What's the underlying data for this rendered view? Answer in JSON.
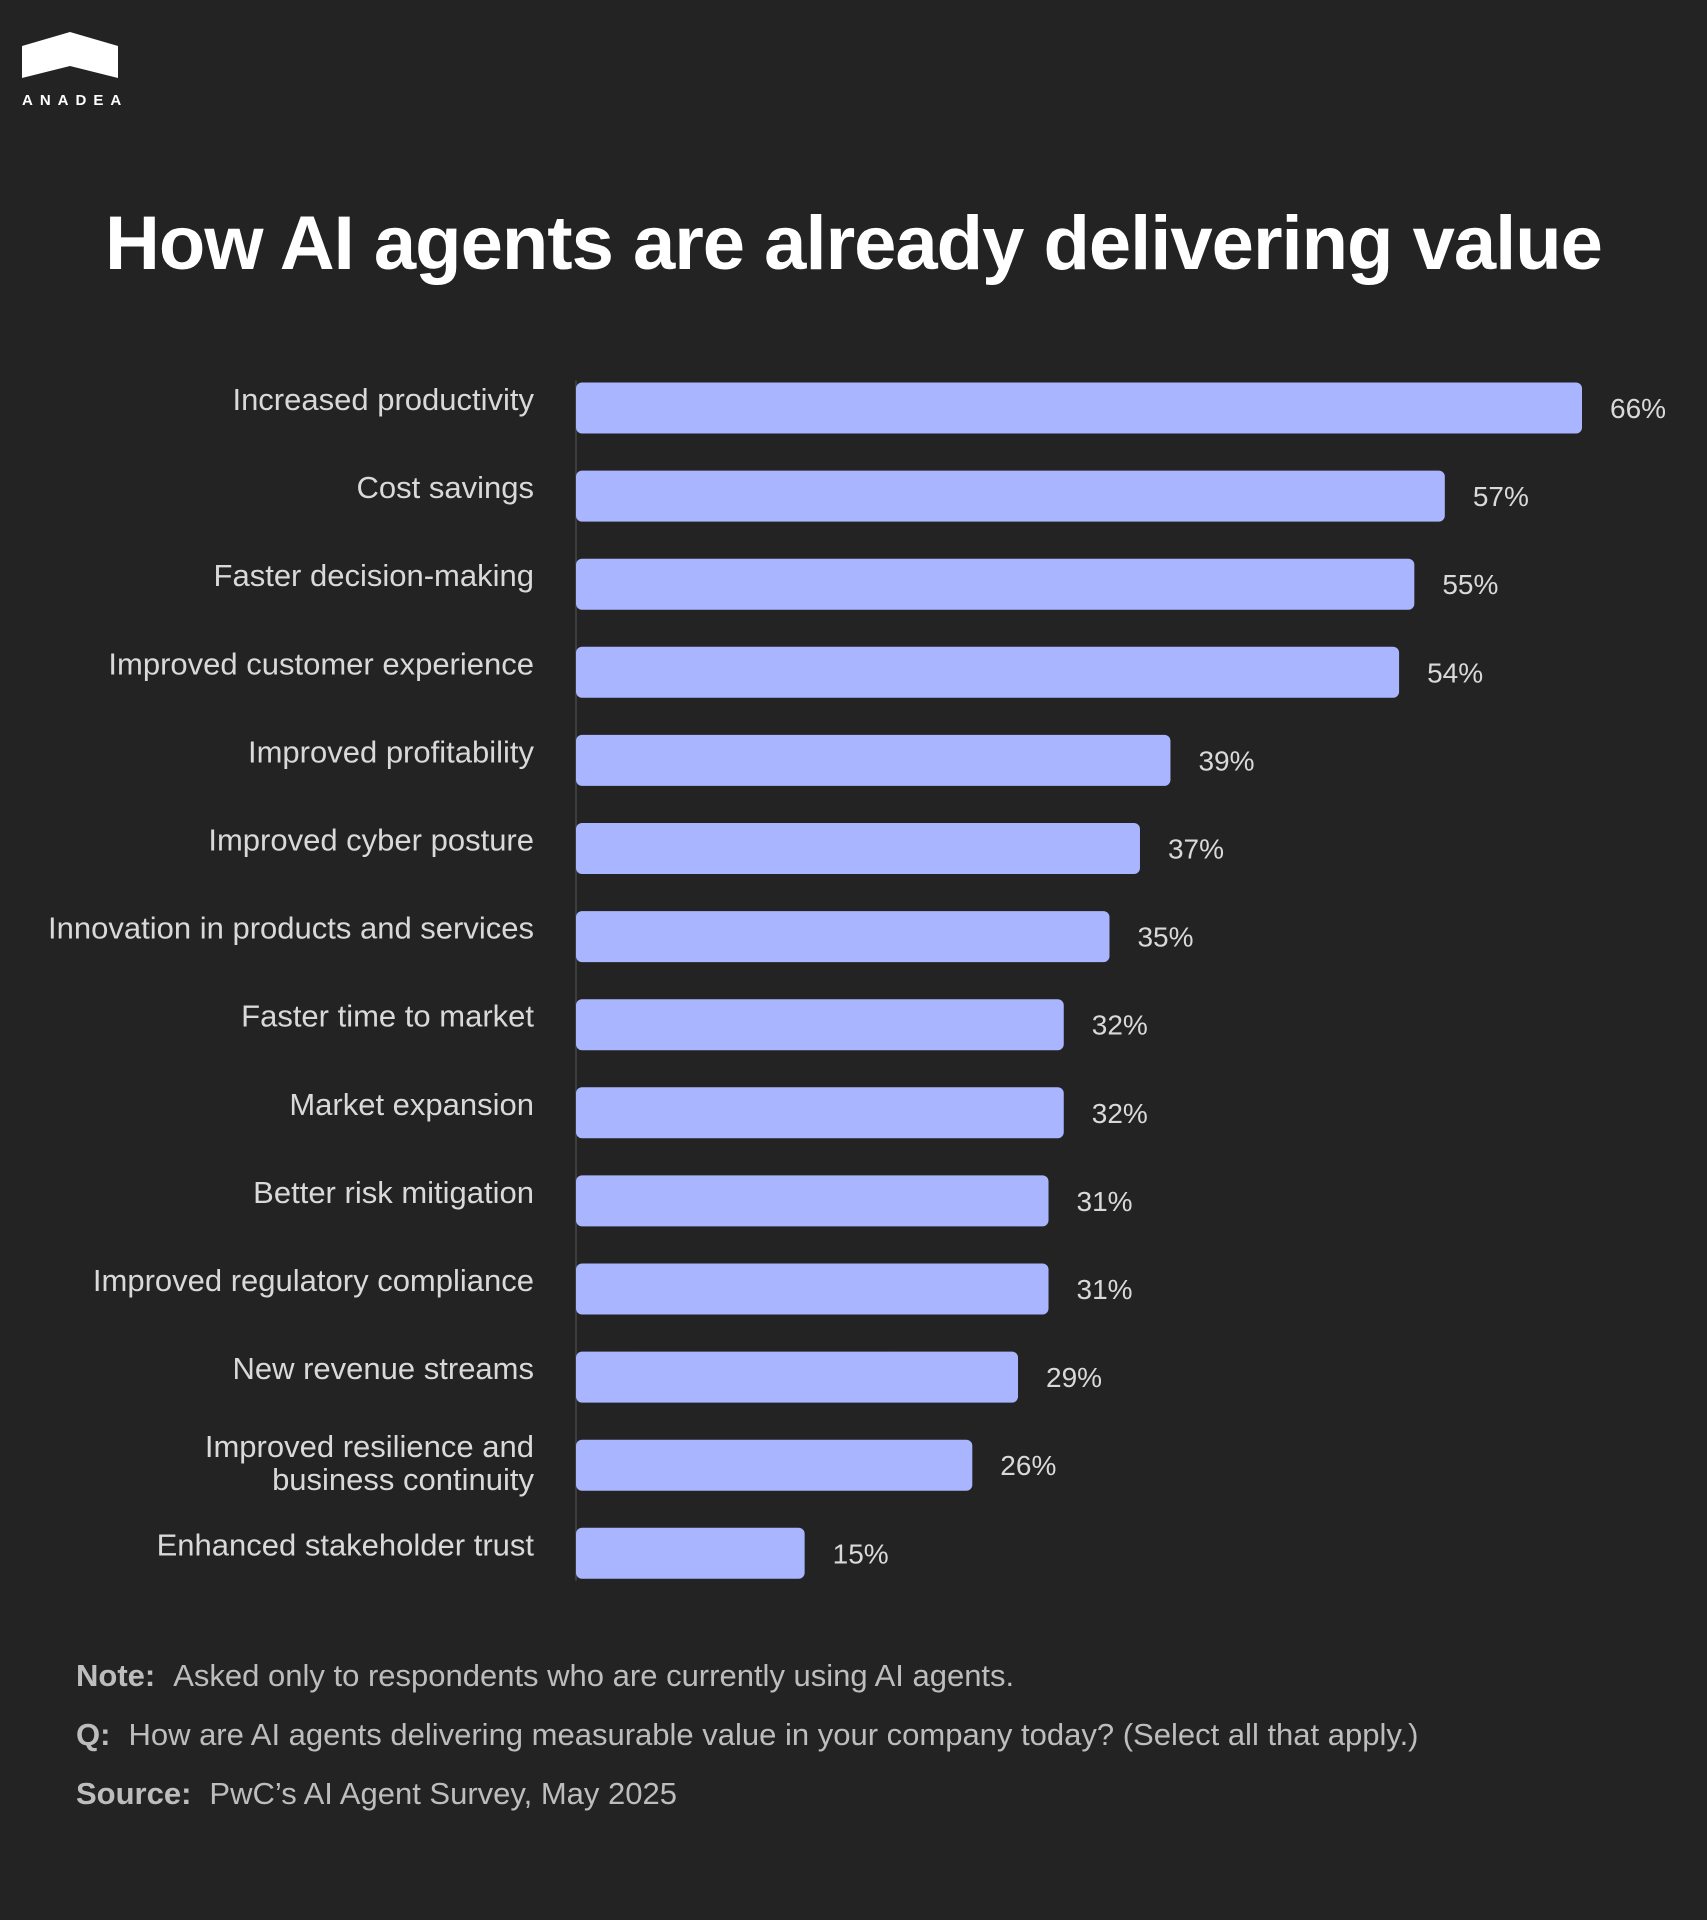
{
  "brand": {
    "name": "ANADEA",
    "logo_icon": "house-roof-icon"
  },
  "chart_data": {
    "type": "bar",
    "orientation": "horizontal",
    "title": "How AI agents are already delivering value",
    "categories": [
      "Increased productivity",
      "Cost savings",
      "Faster decision-making",
      "Improved customer experience",
      "Improved profitability",
      "Improved cyber posture",
      "Innovation in products and services",
      "Faster time to market",
      "Market expansion",
      "Better risk mitigation",
      "Improved regulatory compliance",
      "New revenue streams",
      "Improved resilience and business continuity",
      "Enhanced stakeholder trust"
    ],
    "values": [
      66,
      57,
      55,
      54,
      39,
      37,
      35,
      32,
      32,
      31,
      31,
      29,
      26,
      15
    ],
    "value_labels": [
      "66%",
      "57%",
      "55%",
      "54%",
      "39%",
      "37%",
      "35%",
      "32%",
      "32%",
      "31%",
      "31%",
      "29%",
      "26%",
      "15%"
    ],
    "unit": "%",
    "xlim": [
      0,
      66
    ],
    "grid": false,
    "legend": "none",
    "colors": {
      "bar": "#a9b6ff",
      "background": "#232323",
      "text": "#d9d9d9"
    }
  },
  "footnotes": [
    {
      "key": "Note:",
      "text": "Asked only to respondents who are currently using AI agents."
    },
    {
      "key": "Q:",
      "text": "How are AI agents delivering measurable value in your company today? (Select all that apply.)"
    },
    {
      "key": "Source:",
      "text": "PwC’s AI Agent Survey, May 2025"
    }
  ]
}
